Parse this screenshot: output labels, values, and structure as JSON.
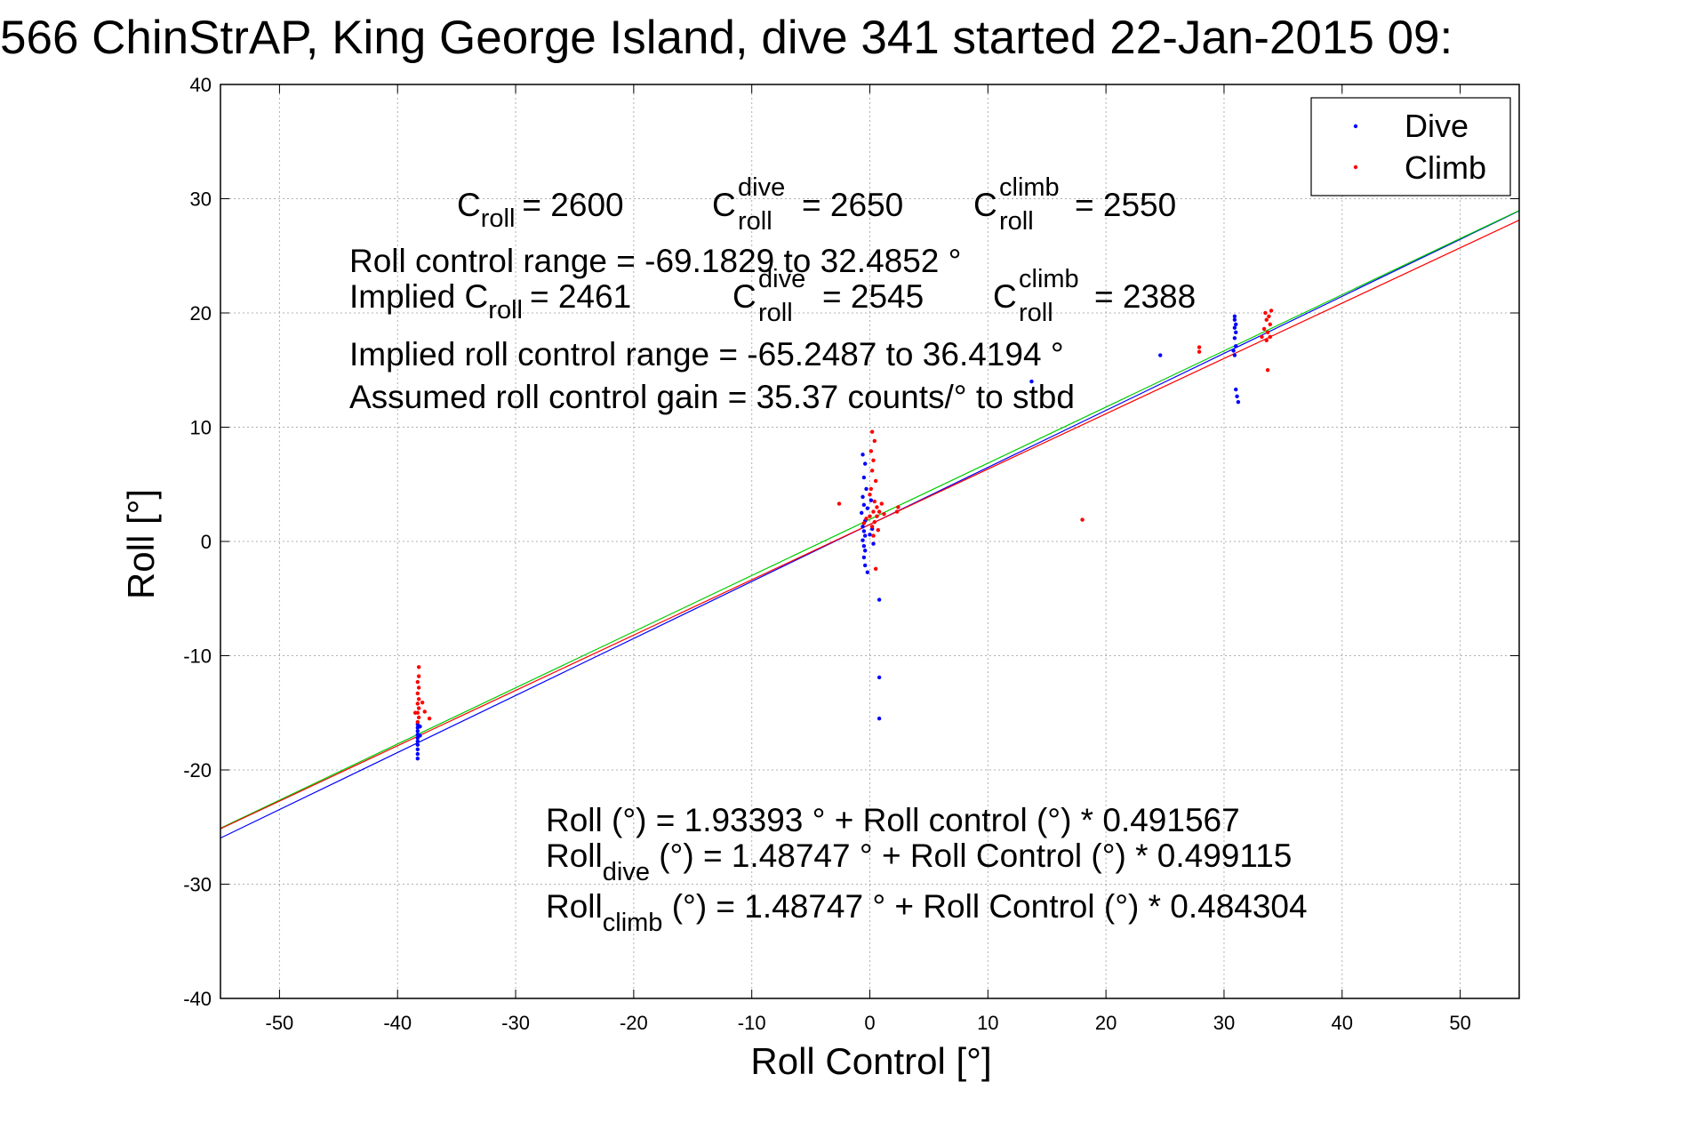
{
  "chart_data": {
    "type": "scatter",
    "title": "566 ChinStrAP, King George Island, dive 341 started 22-Jan-2015 09:",
    "xlabel": "Roll Control [°]",
    "ylabel": "Roll [°]",
    "xlim": [
      -55,
      55
    ],
    "ylim": [
      -40,
      40
    ],
    "xticks": [
      -50,
      -40,
      -30,
      -20,
      -10,
      0,
      10,
      20,
      30,
      40,
      50
    ],
    "yticks": [
      -40,
      -30,
      -20,
      -10,
      0,
      10,
      20,
      30,
      40
    ],
    "grid": true,
    "legend_position": "top-right",
    "legend": [
      {
        "label": "Dive",
        "color": "#0000ff"
      },
      {
        "label": "Climb",
        "color": "#ff0000"
      }
    ],
    "series": [
      {
        "name": "Dive",
        "color": "#0000ff",
        "points": [
          [
            -38.3,
            -19.0
          ],
          [
            -38.3,
            -18.6
          ],
          [
            -38.3,
            -18.2
          ],
          [
            -38.3,
            -17.8
          ],
          [
            -38.3,
            -17.5
          ],
          [
            -38.3,
            -17.2
          ],
          [
            -38.3,
            -16.9
          ],
          [
            -38.3,
            -16.6
          ],
          [
            -38.3,
            -16.3
          ],
          [
            -38.3,
            -16.0
          ],
          [
            -38.1,
            -17.0
          ],
          [
            -38.1,
            -16.2
          ],
          [
            -0.6,
            7.6
          ],
          [
            -0.4,
            6.8
          ],
          [
            -0.5,
            5.6
          ],
          [
            -0.3,
            4.6
          ],
          [
            -0.6,
            3.9
          ],
          [
            -0.5,
            3.2
          ],
          [
            -0.7,
            2.5
          ],
          [
            -0.4,
            1.8
          ],
          [
            -0.6,
            1.3
          ],
          [
            -0.5,
            0.9
          ],
          [
            -0.4,
            0.5
          ],
          [
            -0.6,
            0.1
          ],
          [
            -0.5,
            -0.4
          ],
          [
            -0.4,
            -0.8
          ],
          [
            -0.5,
            -1.4
          ],
          [
            -0.4,
            -2.1
          ],
          [
            -0.2,
            -2.7
          ],
          [
            0.8,
            -5.1
          ],
          [
            0.8,
            -11.9
          ],
          [
            0.8,
            -15.5
          ],
          [
            0.2,
            1.1
          ],
          [
            0.0,
            0.6
          ],
          [
            0.3,
            -0.2
          ],
          [
            -0.2,
            2.9
          ],
          [
            0.1,
            3.6
          ],
          [
            13.7,
            14.0
          ],
          [
            24.6,
            16.3
          ],
          [
            30.9,
            19.7
          ],
          [
            30.9,
            19.4
          ],
          [
            31.0,
            19.0
          ],
          [
            30.9,
            18.7
          ],
          [
            31.0,
            18.3
          ],
          [
            30.9,
            17.8
          ],
          [
            31.0,
            17.1
          ],
          [
            30.9,
            16.3
          ],
          [
            31.0,
            13.3
          ],
          [
            31.1,
            12.7
          ],
          [
            31.2,
            12.2
          ],
          [
            30.8,
            16.7
          ]
        ]
      },
      {
        "name": "Climb",
        "color": "#ff0000",
        "points": [
          [
            -38.2,
            -11.0
          ],
          [
            -38.2,
            -11.8
          ],
          [
            -38.3,
            -12.3
          ],
          [
            -38.2,
            -12.8
          ],
          [
            -38.3,
            -13.3
          ],
          [
            -38.2,
            -13.8
          ],
          [
            -38.3,
            -14.2
          ],
          [
            -38.2,
            -14.6
          ],
          [
            -38.3,
            -15.0
          ],
          [
            -38.2,
            -15.4
          ],
          [
            -38.3,
            -15.8
          ],
          [
            -37.7,
            -14.9
          ],
          [
            -37.3,
            -15.5
          ],
          [
            -37.9,
            -14.1
          ],
          [
            -38.5,
            -15.0
          ],
          [
            -2.6,
            3.3
          ],
          [
            0.2,
            9.6
          ],
          [
            0.4,
            8.8
          ],
          [
            0.1,
            7.9
          ],
          [
            0.3,
            7.1
          ],
          [
            0.2,
            6.2
          ],
          [
            0.5,
            5.3
          ],
          [
            0.1,
            4.6
          ],
          [
            0.0,
            4.1
          ],
          [
            0.4,
            3.5
          ],
          [
            0.6,
            3.0
          ],
          [
            0.3,
            2.6
          ],
          [
            0.0,
            2.2
          ],
          [
            0.8,
            2.6
          ],
          [
            0.4,
            1.7
          ],
          [
            0.2,
            1.3
          ],
          [
            0.7,
            1.0
          ],
          [
            0.3,
            0.5
          ],
          [
            1.2,
            2.4
          ],
          [
            1.0,
            3.3
          ],
          [
            -0.3,
            2.0
          ],
          [
            -0.5,
            1.6
          ],
          [
            0.5,
            -2.4
          ],
          [
            0.6,
            2.2
          ],
          [
            2.3,
            2.6
          ],
          [
            2.4,
            3.0
          ],
          [
            18.0,
            1.9
          ],
          [
            27.9,
            17.0
          ],
          [
            27.9,
            16.6
          ],
          [
            33.5,
            20.0
          ],
          [
            33.8,
            19.7
          ],
          [
            34.0,
            20.2
          ],
          [
            33.6,
            19.4
          ],
          [
            33.9,
            19.0
          ],
          [
            33.4,
            18.6
          ],
          [
            33.7,
            18.3
          ],
          [
            33.2,
            17.9
          ],
          [
            33.6,
            17.6
          ],
          [
            33.9,
            17.9
          ],
          [
            33.7,
            15.0
          ]
        ]
      }
    ],
    "fit_lines": [
      {
        "color": "#0000ff",
        "intercept": 1.48747,
        "slope": 0.499115
      },
      {
        "color": "#00cc00",
        "intercept": 1.93393,
        "slope": 0.491567
      },
      {
        "color": "#ff0000",
        "intercept": 1.48747,
        "slope": 0.484304
      }
    ],
    "annotations": {
      "c_roll_label": "C",
      "c_roll_sub": "roll",
      "c_roll_value": "= 2600",
      "c_dive_label": "C",
      "c_dive_sup": "dive",
      "c_dive_sub": "roll",
      "c_dive_value": "= 2650",
      "c_climb_label": "C",
      "c_climb_sup": "climb",
      "c_climb_sub": "roll",
      "c_climb_value": "= 2550",
      "range_text": "Roll control range = -69.1829 to 32.4852 °",
      "implied_prefix": "Implied C",
      "implied_sub": "roll",
      "implied_value": "= 2461",
      "implied_dive_label": "C",
      "implied_dive_sup": "dive",
      "implied_dive_sub": "roll",
      "implied_dive_value": "= 2545",
      "implied_climb_label": "C",
      "implied_climb_sup": "climb",
      "implied_climb_sub": "roll",
      "implied_climb_value": "= 2388",
      "implied_range_text": "Implied roll control range = -65.2487 to 36.4194 °",
      "gain_text": "Assumed roll control gain = 35.37 counts/° to stbd",
      "eq_all": "Roll (°) = 1.93393 ° + Roll control (°) * 0.491567",
      "eq_dive_prefix": "Roll",
      "eq_dive_sub": "dive",
      "eq_dive_rest": " (°) = 1.48747 ° + Roll Control (°) * 0.499115",
      "eq_climb_prefix": "Roll",
      "eq_climb_sub": "climb",
      "eq_climb_rest": " (°) = 1.48747 ° + Roll Control (°) * 0.484304"
    }
  }
}
